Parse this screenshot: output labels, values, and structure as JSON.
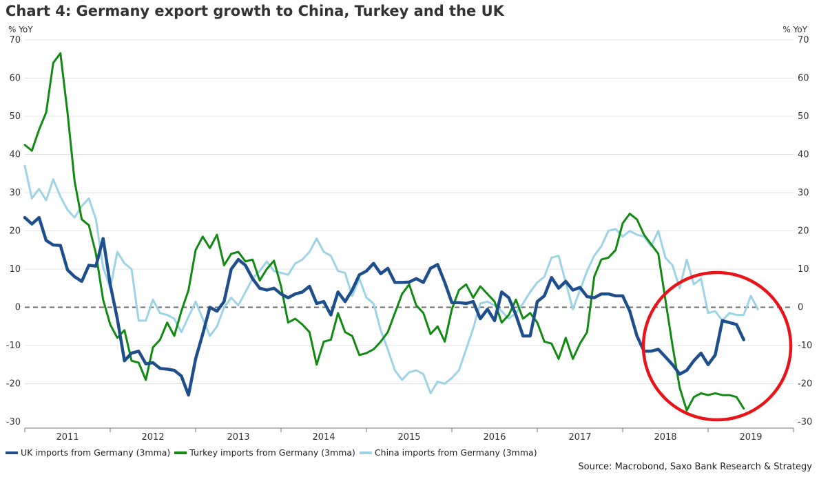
{
  "chart_data": {
    "type": "line",
    "title": "Chart 4: Germany export growth to China, Turkey and the UK",
    "ylabel_left": "% YoY",
    "ylabel_right": "% YoY",
    "ylim": [
      -30,
      70
    ],
    "yticks": [
      -30,
      -20,
      -10,
      0,
      10,
      20,
      30,
      40,
      50,
      60,
      70
    ],
    "xlim": [
      2010.5,
      2019.5
    ],
    "xtick_labels": [
      "2011",
      "2012",
      "2013",
      "2014",
      "2015",
      "2016",
      "2017",
      "2018",
      "2019"
    ],
    "xtick_values": [
      2011,
      2012,
      2013,
      2014,
      2015,
      2016,
      2017,
      2018,
      2019
    ],
    "zero_line": "dashed",
    "grid": "horizontal",
    "legend_position": "bottom",
    "annotation": "red circle highlighting 2018-2019",
    "source": "Source: Macrobond, Saxo Bank Research & Strategy",
    "series": [
      {
        "name": "UK imports from Germany (3mma)",
        "color": "#1f4e8c",
        "x_start": 2010.5,
        "step_months": 1,
        "values": [
          23.5,
          21.8,
          23.5,
          17.5,
          16.3,
          16.2,
          9.8,
          8.0,
          6.8,
          11.0,
          10.8,
          18.0,
          6.0,
          -3.0,
          -14.0,
          -12.0,
          -11.5,
          -14.8,
          -14.5,
          -16.0,
          -16.2,
          -16.5,
          -18.0,
          -23.0,
          -13.5,
          -7.0,
          0.0,
          -1.0,
          1.5,
          10.0,
          12.5,
          11.0,
          7.5,
          5.0,
          4.5,
          5.0,
          3.5,
          2.5,
          3.5,
          4.0,
          5.5,
          1.0,
          1.5,
          -2.0,
          4.0,
          1.5,
          4.5,
          8.5,
          9.5,
          11.5,
          8.8,
          10.2,
          6.5,
          6.5,
          6.6,
          7.5,
          6.5,
          10.2,
          11.2,
          6.5,
          1.2,
          1.2,
          1.0,
          1.5,
          -3.0,
          -0.5,
          -3.5,
          4.0,
          2.5,
          -2.0,
          -7.5,
          -7.5,
          1.5,
          3.0,
          7.8,
          5.0,
          6.8,
          4.5,
          5.2,
          2.8,
          2.5,
          3.5,
          3.5,
          3.0,
          3.0,
          -1.0,
          -7.5,
          -11.5,
          -11.5,
          -11.0,
          -13.0,
          -15.0,
          -17.5,
          -16.5,
          -14.0,
          -12.0,
          -15.0,
          -12.5,
          -3.5,
          -4.0,
          -4.5,
          -8.5
        ]
      },
      {
        "name": "Turkey imports from Germany (3mma)",
        "color": "#118a11",
        "x_start": 2010.5,
        "step_months": 1,
        "values": [
          42.5,
          41.0,
          46.5,
          51.0,
          64.0,
          66.5,
          51.0,
          33.0,
          23.0,
          21.5,
          14.0,
          2.0,
          -4.5,
          -8.0,
          -6.0,
          -14.0,
          -14.5,
          -19.0,
          -10.5,
          -8.5,
          -4.0,
          -7.5,
          -1.0,
          4.5,
          15.0,
          18.5,
          15.5,
          19.0,
          11.0,
          14.0,
          14.5,
          12.0,
          12.5,
          7.0,
          10.0,
          12.2,
          5.5,
          -4.0,
          -3.0,
          -4.5,
          -6.5,
          -15.0,
          -9.0,
          -8.5,
          -1.5,
          -6.5,
          -7.5,
          -12.5,
          -12.0,
          -11.0,
          -9.0,
          -6.5,
          -1.5,
          3.5,
          6.0,
          0.5,
          -1.5,
          -7.0,
          -5.0,
          -9.0,
          -0.5,
          4.5,
          6.0,
          2.5,
          5.5,
          3.5,
          1.5,
          -4.0,
          -2.0,
          2.0,
          -3.0,
          -1.5,
          -4.0,
          -9.0,
          -9.5,
          -13.5,
          -8.0,
          -13.5,
          -9.5,
          -6.5,
          8.0,
          12.5,
          13.0,
          15.0,
          22.0,
          24.5,
          23.0,
          19.0,
          16.5,
          14.0,
          2.0,
          -10.0,
          -21.0,
          -27.0,
          -23.5,
          -22.5,
          -23.0,
          -22.5,
          -23.0,
          -23.0,
          -23.5,
          -26.5
        ]
      },
      {
        "name": "China imports from Germany (3mma)",
        "color": "#9dd3e6",
        "x_start": 2010.5,
        "step_months": 1,
        "values": [
          37.0,
          28.5,
          31.0,
          28.0,
          33.5,
          29.0,
          25.5,
          23.5,
          26.5,
          28.5,
          23.0,
          10.5,
          5.0,
          14.5,
          11.5,
          10.0,
          -3.5,
          -3.5,
          2.0,
          -1.5,
          -2.0,
          -3.0,
          -6.5,
          -2.5,
          1.5,
          -3.0,
          -7.5,
          -5.0,
          0.0,
          2.5,
          0.5,
          4.0,
          7.5,
          9.5,
          12.0,
          9.5,
          9.0,
          8.5,
          11.5,
          12.5,
          14.5,
          18.0,
          14.5,
          13.5,
          9.5,
          9.0,
          3.0,
          7.5,
          2.5,
          1.0,
          -6.0,
          -11.0,
          -16.5,
          -19.0,
          -17.0,
          -16.5,
          -17.5,
          -22.5,
          -19.5,
          -20.0,
          -18.5,
          -16.5,
          -11.0,
          -5.5,
          1.0,
          1.5,
          0.5,
          -1.0,
          -3.0,
          -1.5,
          1.0,
          4.0,
          6.5,
          8.0,
          13.0,
          13.5,
          6.5,
          -0.5,
          4.5,
          9.5,
          13.5,
          16.0,
          20.0,
          20.5,
          18.5,
          20.0,
          19.0,
          18.5,
          16.0,
          20.0,
          13.0,
          11.0,
          5.0,
          12.5,
          6.0,
          7.5,
          -1.5,
          -1.0,
          -3.5,
          -1.5,
          -2.0,
          -2.0,
          3.0,
          -0.5
        ]
      }
    ]
  }
}
